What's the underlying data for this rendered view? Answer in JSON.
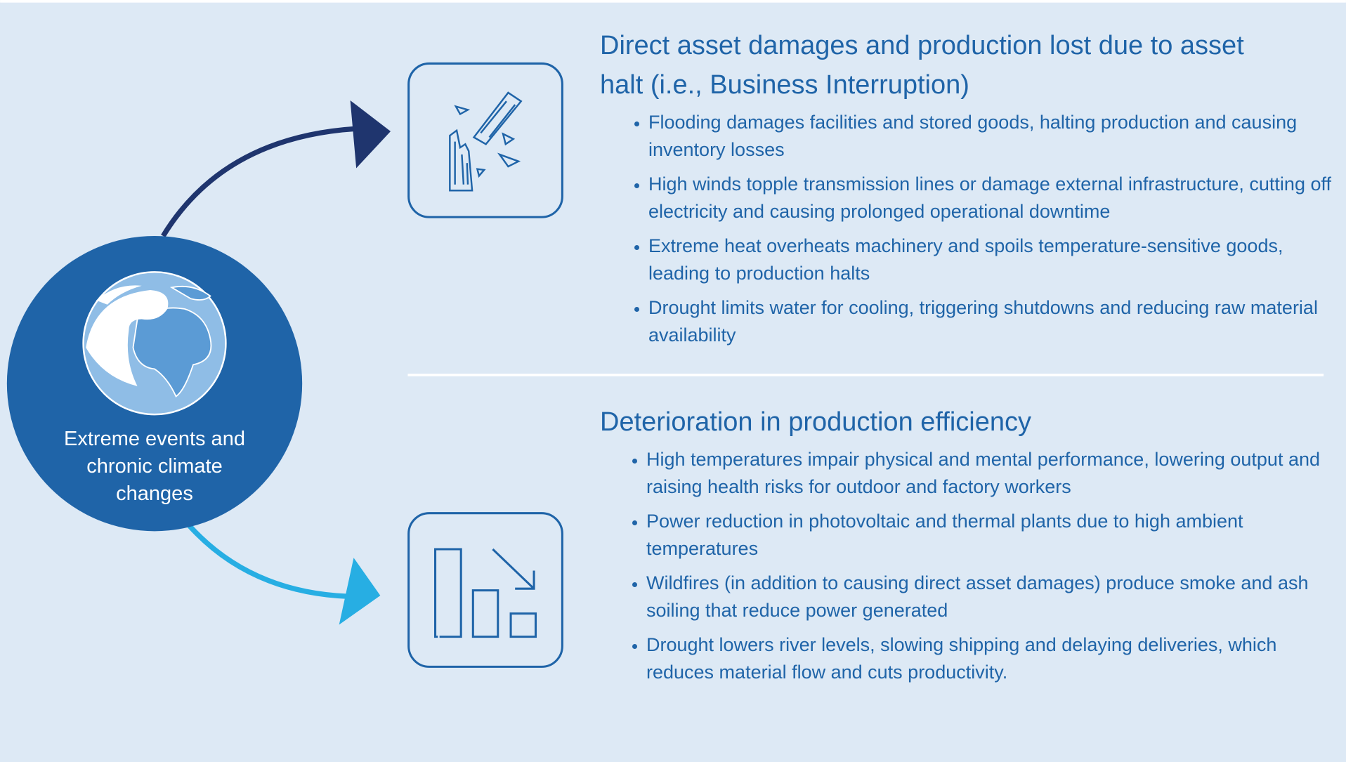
{
  "center_label": "Extreme events and chronic climate changes",
  "sections": [
    {
      "title": "Direct asset damages and production lost due to asset halt (i.e., Business Interruption)",
      "bullets": [
        "Flooding damages facilities and stored goods, halting production and causing inventory losses",
        "High winds topple transmission lines or damage external infrastructure, cutting off electricity and causing prolonged operational downtime",
        "Extreme heat overheats machinery and spoils temperature-sensitive goods, leading to production halts",
        "Drought limits water for cooling, triggering shutdowns and reducing raw material availability"
      ]
    },
    {
      "title": "Deterioration in production efficiency",
      "bullets": [
        "High temperatures impair physical and mental performance, lowering output and raising health risks for outdoor and factory workers",
        "Power reduction in photovoltaic and thermal plants due to high ambient temperatures",
        "Wildfires (in addition to causing direct asset damages) produce smoke and ash soiling that reduce power generated",
        "Drought lowers river levels, slowing shipping and delaying deliveries, which reduces material flow and cuts productivity."
      ]
    }
  ]
}
